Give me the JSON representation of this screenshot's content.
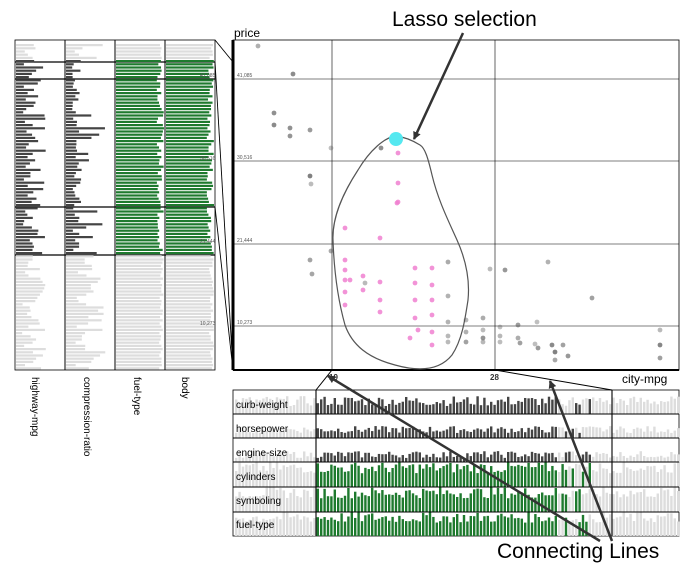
{
  "annotations": {
    "lasso_label": "Lasso selection",
    "connecting_label": "Connecting Lines"
  },
  "scatter": {
    "y_axis_label": "price",
    "x_axis_label": "city-mpg",
    "y_ticks": [
      "41,085",
      "30,516",
      "21,444",
      "10,273"
    ],
    "x_ticks": [
      "19",
      "28"
    ],
    "colors": {
      "selected": "#f080d0",
      "unselected": "#555555",
      "brush": "#55e8f0"
    }
  },
  "left_panel": {
    "columns": [
      "highway-mpg",
      "compression-ratio",
      "fuel-type",
      "body"
    ]
  },
  "bottom_panel": {
    "rows": [
      "curb-weight",
      "horsepower",
      "engine-size",
      "cylinders",
      "symboling",
      "fuel-type"
    ]
  },
  "colors": {
    "dark_bar": "#444444",
    "green_bar": "#1e7a2e",
    "faded_bar": "#dddddd"
  }
}
